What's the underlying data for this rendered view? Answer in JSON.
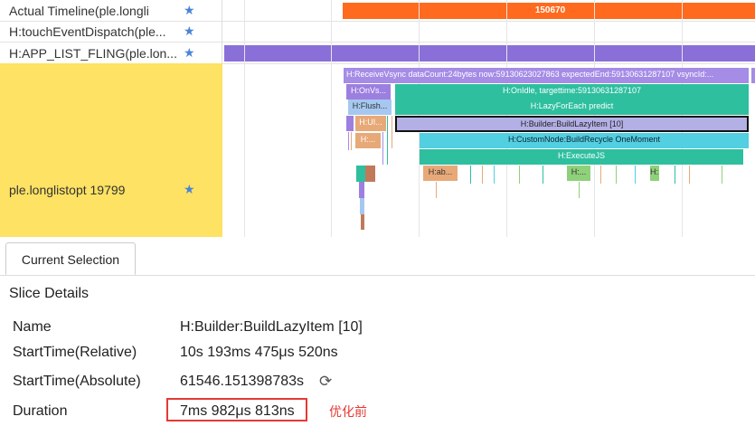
{
  "lanes": [
    {
      "label": "Actual Timeline(ple.longli",
      "star": "★"
    },
    {
      "label": "H:touchEventDispatch(ple...",
      "star": "★"
    },
    {
      "label": "H:APP_LIST_FLING(ple.lon...",
      "star": "★"
    },
    {
      "label": "ple.longlistopt 19799",
      "star": "★"
    }
  ],
  "timeline": {
    "actual_value": "150670",
    "receive_vsync": "H:ReceiveVsync dataCount:24bytes now:59130623027863 expectedEnd:59130631287107 vsyncId:...",
    "on_vsync": "H:OnVs...",
    "on_idle": "H:OnIdle, targettime:59130631287107",
    "flush": "H:Flush...",
    "lazy_for_each": "H:LazyForEach predict",
    "ui": "H:UI...",
    "builder": "H:Builder:BuildLazyItem [10]",
    "small": "H:...",
    "custom_node": "H:CustomNode:BuildRecycle OneMoment",
    "execute_js": "H:ExecuteJS",
    "ab": "H:ab...",
    "h1": "H:...",
    "h2": "H:..."
  },
  "tab": {
    "current_selection": "Current Selection"
  },
  "details": {
    "title": "Slice Details",
    "rows": [
      {
        "key": "Name",
        "value": "H:Builder:BuildLazyItem [10]"
      },
      {
        "key": "StartTime(Relative)",
        "value": "10s 193ms 475μs 520ns"
      },
      {
        "key": "StartTime(Absolute)",
        "value": "61546.151398783s"
      },
      {
        "key": "Duration",
        "value": "7ms 982μs 813ns"
      }
    ],
    "refresh_icon": "⟳",
    "note": "优化前"
  },
  "colors": {
    "actual": "#ff6a1e",
    "fling": "#8a6fd8",
    "lane_yellow": "#fde263",
    "receive_vsync": "#a58ce6",
    "teal": "#2ebf9f",
    "light_blue": "#a6c8f0",
    "builder_fill": "#b3b0e6",
    "cyan": "#52cfe0",
    "orange_light": "#e8a978",
    "green": "#8fd07a",
    "highlight": "#e53935"
  }
}
